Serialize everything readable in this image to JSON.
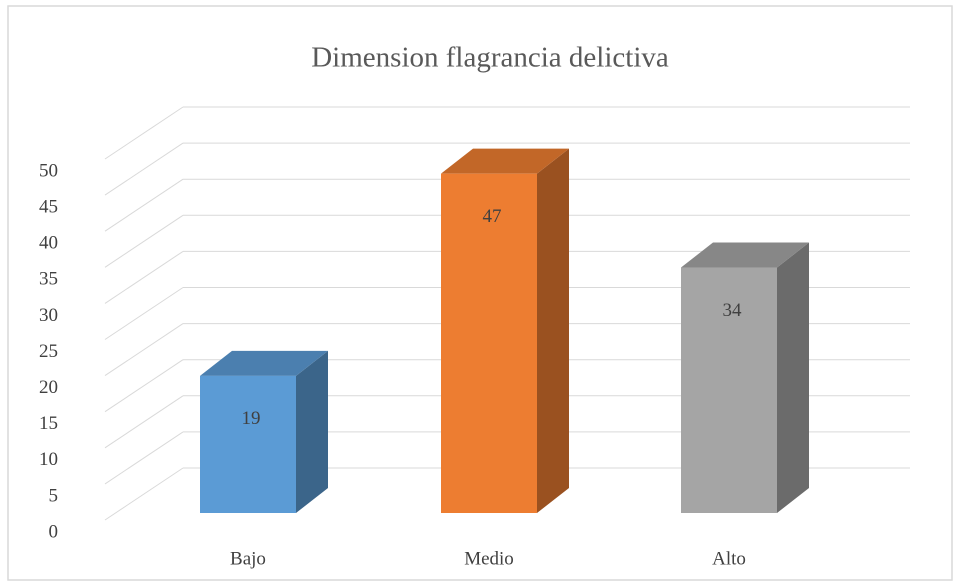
{
  "chart_data": {
    "type": "bar3d",
    "title": "Dimension flagrancia delictiva",
    "categories": [
      "Bajo",
      "Medio",
      "Alto"
    ],
    "values": [
      19,
      47,
      34
    ],
    "colors": [
      "#5b9bd5",
      "#ed7d31",
      "#a5a5a5"
    ],
    "ylim": [
      0,
      50
    ],
    "yticks": [
      0,
      5,
      10,
      15,
      20,
      25,
      30,
      35,
      40,
      45,
      50
    ],
    "grid": true
  }
}
